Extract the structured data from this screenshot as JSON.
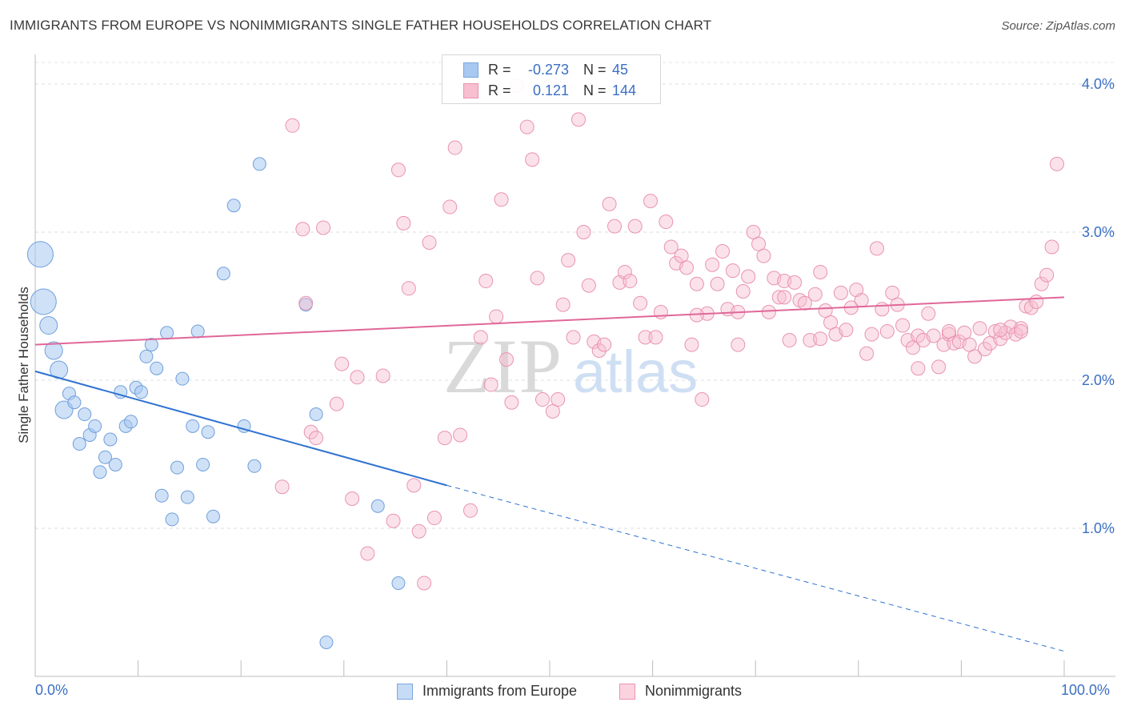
{
  "title": "IMMIGRANTS FROM EUROPE VS NONIMMIGRANTS SINGLE FATHER HOUSEHOLDS CORRELATION CHART",
  "source": "Source: ZipAtlas.com",
  "watermark": {
    "zip": "ZIP",
    "atlas": "atlas"
  },
  "legend": {
    "rows": [
      {
        "r_label": "R =",
        "r_value": "-0.273",
        "n_label": "N =",
        "n_value": "45",
        "color": "#a8c8f0",
        "border": "#7aa6e0"
      },
      {
        "r_label": "R =",
        "r_value": "0.121",
        "n_label": "N =",
        "n_value": "144",
        "color": "#f7bfd0",
        "border": "#e993b0"
      }
    ]
  },
  "bottom_legend": [
    {
      "label": "Immigrants from Europe",
      "color": "#c6dcf6",
      "border": "#7aa6e0"
    },
    {
      "label": "Nonimmigrants",
      "color": "#fbd3df",
      "border": "#e993b0"
    }
  ],
  "chart_data": {
    "type": "scatter",
    "title": "IMMIGRANTS FROM EUROPE VS NONIMMIGRANTS SINGLE FATHER HOUSEHOLDS CORRELATION CHART",
    "xlabel": "",
    "ylabel": "Single Father Households",
    "xlim": [
      0,
      100
    ],
    "ylim": [
      0,
      4.2
    ],
    "x_tick_labels": [
      "0.0%",
      "100.0%"
    ],
    "y_ticks": [
      1.0,
      2.0,
      3.0,
      4.0
    ],
    "y_tick_labels": [
      "1.0%",
      "2.0%",
      "3.0%",
      "4.0%"
    ],
    "grid": "horizontal dashed",
    "legend_position": "top-center",
    "series": [
      {
        "name": "Immigrants from Europe",
        "color": "#a8c8f0",
        "stroke": "#6f9fdc",
        "trend": {
          "x": [
            0,
            40
          ],
          "y": [
            2.06,
            1.29
          ],
          "extended_to": [
            100,
            0.17
          ]
        },
        "points": [
          {
            "x": 0.5,
            "y": 2.85,
            "s": 3
          },
          {
            "x": 0.8,
            "y": 2.53,
            "s": 3
          },
          {
            "x": 1.3,
            "y": 2.37,
            "s": 2
          },
          {
            "x": 1.8,
            "y": 2.2,
            "s": 2
          },
          {
            "x": 2.3,
            "y": 2.07,
            "s": 2
          },
          {
            "x": 3.3,
            "y": 1.91,
            "s": 1
          },
          {
            "x": 2.8,
            "y": 1.8,
            "s": 2
          },
          {
            "x": 3.8,
            "y": 1.85,
            "s": 1
          },
          {
            "x": 4.8,
            "y": 1.77,
            "s": 1
          },
          {
            "x": 5.3,
            "y": 1.63,
            "s": 1
          },
          {
            "x": 5.8,
            "y": 1.69,
            "s": 1
          },
          {
            "x": 4.3,
            "y": 1.57,
            "s": 1
          },
          {
            "x": 7.3,
            "y": 1.6,
            "s": 1
          },
          {
            "x": 6.8,
            "y": 1.48,
            "s": 1
          },
          {
            "x": 7.8,
            "y": 1.43,
            "s": 1
          },
          {
            "x": 6.3,
            "y": 1.38,
            "s": 1
          },
          {
            "x": 8.3,
            "y": 1.92,
            "s": 1
          },
          {
            "x": 8.8,
            "y": 1.69,
            "s": 1
          },
          {
            "x": 9.3,
            "y": 1.72,
            "s": 1
          },
          {
            "x": 9.8,
            "y": 1.95,
            "s": 1
          },
          {
            "x": 10.3,
            "y": 1.92,
            "s": 1
          },
          {
            "x": 10.8,
            "y": 2.16,
            "s": 1
          },
          {
            "x": 11.3,
            "y": 2.24,
            "s": 1
          },
          {
            "x": 11.8,
            "y": 2.08,
            "s": 1
          },
          {
            "x": 12.8,
            "y": 2.32,
            "s": 1
          },
          {
            "x": 14.3,
            "y": 2.01,
            "s": 1
          },
          {
            "x": 15.8,
            "y": 2.33,
            "s": 1
          },
          {
            "x": 12.3,
            "y": 1.22,
            "s": 1
          },
          {
            "x": 13.3,
            "y": 1.06,
            "s": 1
          },
          {
            "x": 13.8,
            "y": 1.41,
            "s": 1
          },
          {
            "x": 14.8,
            "y": 1.21,
            "s": 1
          },
          {
            "x": 15.3,
            "y": 1.69,
            "s": 1
          },
          {
            "x": 16.3,
            "y": 1.43,
            "s": 1
          },
          {
            "x": 16.8,
            "y": 1.65,
            "s": 1
          },
          {
            "x": 17.3,
            "y": 1.08,
            "s": 1
          },
          {
            "x": 18.3,
            "y": 2.72,
            "s": 1
          },
          {
            "x": 19.3,
            "y": 3.18,
            "s": 1
          },
          {
            "x": 20.3,
            "y": 1.69,
            "s": 1
          },
          {
            "x": 21.3,
            "y": 1.42,
            "s": 1
          },
          {
            "x": 21.8,
            "y": 3.46,
            "s": 1
          },
          {
            "x": 26.3,
            "y": 2.51,
            "s": 1
          },
          {
            "x": 27.3,
            "y": 1.77,
            "s": 1
          },
          {
            "x": 28.3,
            "y": 0.23,
            "s": 1
          },
          {
            "x": 33.3,
            "y": 1.15,
            "s": 1
          },
          {
            "x": 35.3,
            "y": 0.63,
            "s": 1
          }
        ]
      },
      {
        "name": "Nonimmigrants",
        "color": "#f7bfd0",
        "stroke": "#e993b0",
        "trend": {
          "x": [
            0,
            100
          ],
          "y": [
            2.24,
            2.56
          ]
        },
        "points": [
          {
            "x": 25,
            "y": 3.72
          },
          {
            "x": 26,
            "y": 3.02
          },
          {
            "x": 28,
            "y": 3.03
          },
          {
            "x": 24,
            "y": 1.28
          },
          {
            "x": 26.3,
            "y": 2.52
          },
          {
            "x": 26.8,
            "y": 1.65
          },
          {
            "x": 27.3,
            "y": 1.61
          },
          {
            "x": 29.3,
            "y": 1.84
          },
          {
            "x": 29.8,
            "y": 2.11
          },
          {
            "x": 30.8,
            "y": 1.2
          },
          {
            "x": 31.3,
            "y": 2.02
          },
          {
            "x": 32.3,
            "y": 0.83
          },
          {
            "x": 33.8,
            "y": 2.03
          },
          {
            "x": 34.8,
            "y": 1.05
          },
          {
            "x": 35.3,
            "y": 3.42
          },
          {
            "x": 35.8,
            "y": 3.06
          },
          {
            "x": 36.3,
            "y": 2.62
          },
          {
            "x": 36.8,
            "y": 1.29
          },
          {
            "x": 37.3,
            "y": 0.98
          },
          {
            "x": 37.8,
            "y": 0.63
          },
          {
            "x": 38.3,
            "y": 2.93
          },
          {
            "x": 38.8,
            "y": 1.07
          },
          {
            "x": 39.8,
            "y": 1.61
          },
          {
            "x": 40.3,
            "y": 3.17
          },
          {
            "x": 40.8,
            "y": 3.57
          },
          {
            "x": 41.3,
            "y": 1.63
          },
          {
            "x": 42.3,
            "y": 1.12
          },
          {
            "x": 43.3,
            "y": 2.29
          },
          {
            "x": 43.8,
            "y": 2.67
          },
          {
            "x": 44.3,
            "y": 1.97
          },
          {
            "x": 44.8,
            "y": 2.43
          },
          {
            "x": 45.3,
            "y": 3.22
          },
          {
            "x": 45.8,
            "y": 2.14
          },
          {
            "x": 46.3,
            "y": 1.85
          },
          {
            "x": 46.8,
            "y": 3.99
          },
          {
            "x": 47.8,
            "y": 3.71
          },
          {
            "x": 48.3,
            "y": 3.49
          },
          {
            "x": 48.8,
            "y": 2.69
          },
          {
            "x": 49.3,
            "y": 1.87
          },
          {
            "x": 50.3,
            "y": 1.79
          },
          {
            "x": 50.8,
            "y": 1.87
          },
          {
            "x": 51.3,
            "y": 2.51
          },
          {
            "x": 51.8,
            "y": 2.81
          },
          {
            "x": 52.3,
            "y": 2.29
          },
          {
            "x": 52.8,
            "y": 3.76
          },
          {
            "x": 53.3,
            "y": 3.0
          },
          {
            "x": 53.8,
            "y": 2.64
          },
          {
            "x": 54.3,
            "y": 2.26
          },
          {
            "x": 54.8,
            "y": 2.2
          },
          {
            "x": 55.3,
            "y": 2.24
          },
          {
            "x": 55.8,
            "y": 3.19
          },
          {
            "x": 56.3,
            "y": 3.04
          },
          {
            "x": 56.8,
            "y": 2.66
          },
          {
            "x": 57.3,
            "y": 2.73
          },
          {
            "x": 57.8,
            "y": 2.67
          },
          {
            "x": 58.3,
            "y": 3.04
          },
          {
            "x": 58.8,
            "y": 2.52
          },
          {
            "x": 59.3,
            "y": 2.29
          },
          {
            "x": 59.8,
            "y": 3.21
          },
          {
            "x": 60.3,
            "y": 2.29
          },
          {
            "x": 60.8,
            "y": 2.46
          },
          {
            "x": 61.3,
            "y": 3.07
          },
          {
            "x": 61.8,
            "y": 2.9
          },
          {
            "x": 62.3,
            "y": 2.79
          },
          {
            "x": 62.8,
            "y": 2.84
          },
          {
            "x": 63.3,
            "y": 2.76
          },
          {
            "x": 63.8,
            "y": 2.24
          },
          {
            "x": 64.3,
            "y": 2.65
          },
          {
            "x": 64.8,
            "y": 1.87
          },
          {
            "x": 65.3,
            "y": 2.45
          },
          {
            "x": 65.8,
            "y": 2.78
          },
          {
            "x": 66.3,
            "y": 2.65
          },
          {
            "x": 66.8,
            "y": 2.87
          },
          {
            "x": 67.3,
            "y": 2.48
          },
          {
            "x": 67.8,
            "y": 2.74
          },
          {
            "x": 68.3,
            "y": 2.46
          },
          {
            "x": 68.8,
            "y": 2.6
          },
          {
            "x": 69.3,
            "y": 2.7
          },
          {
            "x": 69.8,
            "y": 3.0
          },
          {
            "x": 70.3,
            "y": 2.92
          },
          {
            "x": 70.8,
            "y": 2.84
          },
          {
            "x": 71.3,
            "y": 2.46
          },
          {
            "x": 71.8,
            "y": 2.69
          },
          {
            "x": 72.3,
            "y": 2.56
          },
          {
            "x": 72.8,
            "y": 2.67
          },
          {
            "x": 73.3,
            "y": 2.27
          },
          {
            "x": 73.8,
            "y": 2.66
          },
          {
            "x": 74.3,
            "y": 2.54
          },
          {
            "x": 74.8,
            "y": 2.52
          },
          {
            "x": 75.3,
            "y": 2.27
          },
          {
            "x": 75.8,
            "y": 2.58
          },
          {
            "x": 76.3,
            "y": 2.73
          },
          {
            "x": 76.8,
            "y": 2.47
          },
          {
            "x": 77.3,
            "y": 2.39
          },
          {
            "x": 77.8,
            "y": 2.31
          },
          {
            "x": 78.3,
            "y": 2.59
          },
          {
            "x": 78.8,
            "y": 2.34
          },
          {
            "x": 79.3,
            "y": 2.49
          },
          {
            "x": 79.8,
            "y": 2.61
          },
          {
            "x": 80.3,
            "y": 2.54
          },
          {
            "x": 80.8,
            "y": 2.18
          },
          {
            "x": 81.3,
            "y": 2.31
          },
          {
            "x": 81.8,
            "y": 2.89
          },
          {
            "x": 82.3,
            "y": 2.48
          },
          {
            "x": 82.8,
            "y": 2.33
          },
          {
            "x": 83.3,
            "y": 2.59
          },
          {
            "x": 83.8,
            "y": 2.51
          },
          {
            "x": 84.3,
            "y": 2.37
          },
          {
            "x": 84.8,
            "y": 2.27
          },
          {
            "x": 85.3,
            "y": 2.22
          },
          {
            "x": 85.8,
            "y": 2.3
          },
          {
            "x": 86.3,
            "y": 2.27
          },
          {
            "x": 86.8,
            "y": 2.45
          },
          {
            "x": 87.3,
            "y": 2.3
          },
          {
            "x": 87.8,
            "y": 2.09
          },
          {
            "x": 88.3,
            "y": 2.24
          },
          {
            "x": 88.8,
            "y": 2.31
          },
          {
            "x": 89.3,
            "y": 2.25
          },
          {
            "x": 89.8,
            "y": 2.26
          },
          {
            "x": 90.3,
            "y": 2.32
          },
          {
            "x": 90.8,
            "y": 2.24
          },
          {
            "x": 91.3,
            "y": 2.16
          },
          {
            "x": 91.8,
            "y": 2.35
          },
          {
            "x": 92.3,
            "y": 2.21
          },
          {
            "x": 92.8,
            "y": 2.25
          },
          {
            "x": 93.3,
            "y": 2.33
          },
          {
            "x": 93.8,
            "y": 2.28
          },
          {
            "x": 94.3,
            "y": 2.32
          },
          {
            "x": 94.8,
            "y": 2.36
          },
          {
            "x": 95.3,
            "y": 2.31
          },
          {
            "x": 95.8,
            "y": 2.35
          },
          {
            "x": 96.3,
            "y": 2.5
          },
          {
            "x": 96.8,
            "y": 2.49
          },
          {
            "x": 97.3,
            "y": 2.53
          },
          {
            "x": 97.8,
            "y": 2.65
          },
          {
            "x": 98.3,
            "y": 2.71
          },
          {
            "x": 98.8,
            "y": 2.9
          },
          {
            "x": 99.3,
            "y": 3.46
          },
          {
            "x": 85.8,
            "y": 2.08
          },
          {
            "x": 76.3,
            "y": 2.28
          },
          {
            "x": 72.8,
            "y": 2.56
          },
          {
            "x": 68.3,
            "y": 2.24
          },
          {
            "x": 64.3,
            "y": 2.44
          },
          {
            "x": 88.8,
            "y": 2.33
          },
          {
            "x": 93.8,
            "y": 2.34
          },
          {
            "x": 95.8,
            "y": 2.33
          }
        ]
      }
    ]
  }
}
